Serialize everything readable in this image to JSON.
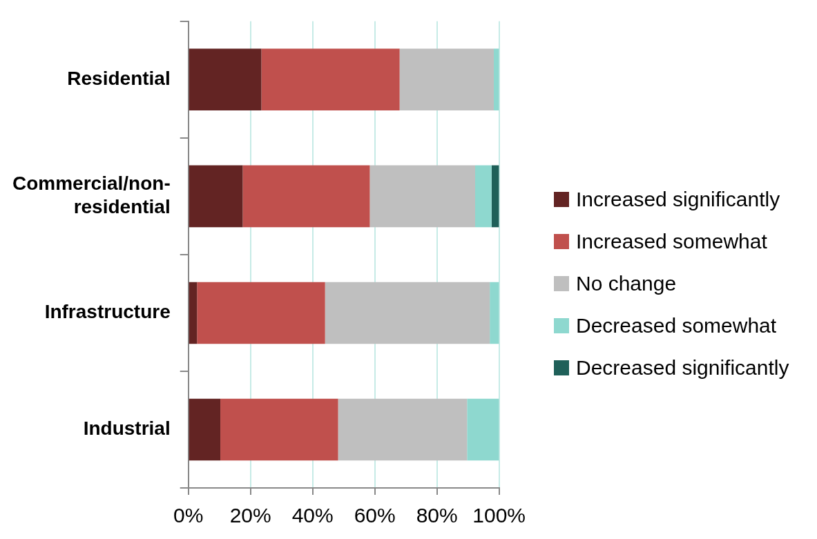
{
  "chart_data": {
    "type": "bar",
    "orientation": "horizontal",
    "stacked": true,
    "categories": [
      "Residential",
      "Commercial/non-residential",
      "Infrastructure",
      "Industrial"
    ],
    "series": [
      {
        "name": "Increased significantly",
        "color": "#632423",
        "values": [
          23.5,
          17.5,
          2.8,
          10.3
        ]
      },
      {
        "name": "Increased somewhat",
        "color": "#c0504d",
        "values": [
          44.5,
          40.9,
          41.2,
          37.9
        ]
      },
      {
        "name": "No change",
        "color": "#bfbfbf",
        "values": [
          30.3,
          33.9,
          53.0,
          41.5
        ]
      },
      {
        "name": "Decreased somewhat",
        "color": "#8ed8cf",
        "values": [
          1.7,
          5.3,
          3.0,
          10.3
        ]
      },
      {
        "name": "Decreased significantly",
        "color": "#1f6059",
        "values": [
          0,
          2.4,
          0,
          0
        ]
      }
    ],
    "xlim": [
      0,
      100
    ],
    "xticks": [
      {
        "value": 0,
        "label": "0%"
      },
      {
        "value": 20,
        "label": "20%"
      },
      {
        "value": 40,
        "label": "40%"
      },
      {
        "value": 60,
        "label": "60%"
      },
      {
        "value": 80,
        "label": "80%"
      },
      {
        "value": 100,
        "label": "100%"
      }
    ],
    "grid": "x",
    "legend": "right"
  }
}
